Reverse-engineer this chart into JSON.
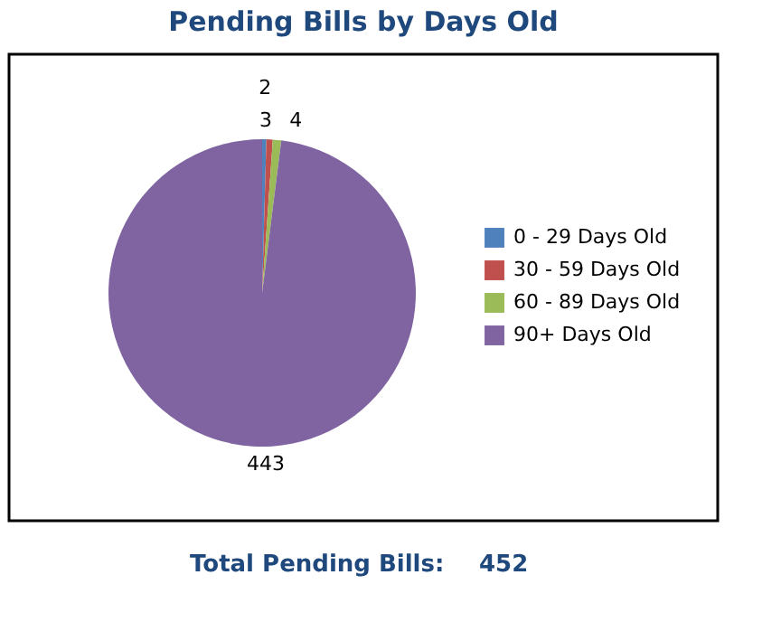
{
  "chart_data": {
    "type": "pie",
    "title": "Pending Bills by Days Old",
    "categories": [
      "0 - 29 Days Old",
      "30 - 59 Days Old",
      "60 - 89 Days Old",
      "90+ Days Old"
    ],
    "values": [
      2,
      3,
      4,
      443
    ],
    "colors": [
      "#4f81bd",
      "#c0504d",
      "#9bbb59",
      "#8064a2"
    ],
    "data_labels": true,
    "legend": "right",
    "annotations": [
      "Total Pending Bills:",
      "452"
    ]
  }
}
